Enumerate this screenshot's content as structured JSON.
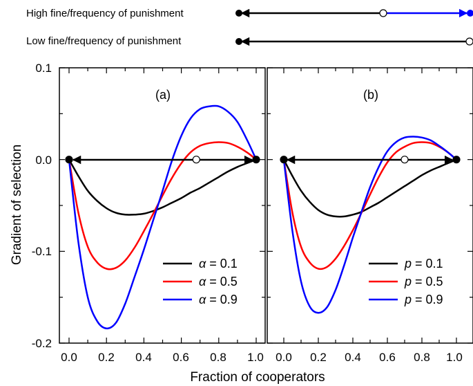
{
  "top_diagrams": [
    {
      "label": "High fine/frequency of punishment",
      "stable_left": 0.0,
      "unstable_interior": 0.68,
      "stable_right": 1.0
    },
    {
      "label": "Low fine/frequency of punishment",
      "stable_left": 0.0,
      "unstable_right": 1.0
    }
  ],
  "colors": {
    "black": "#000000",
    "red": "#ff0000",
    "blue": "#0000ff"
  },
  "chart_data": [
    {
      "type": "line",
      "panel_label": "(a)",
      "xlabel": "Fraction of cooperators",
      "ylabel": "Gradient of selection",
      "xlim": [
        0.0,
        1.0
      ],
      "ylim": [
        -0.2,
        0.1
      ],
      "x_ticks": [
        "0.0",
        "0.2",
        "0.4",
        "0.6",
        "0.8",
        "1.0"
      ],
      "y_ticks": [
        "0.1",
        "0.0",
        "-0.1",
        "-0.2"
      ],
      "legend_position": "bottom-right",
      "legend": [
        {
          "symbol": "α",
          "text": " = 0.1",
          "color": "#000000"
        },
        {
          "symbol": "α",
          "text": " = 0.5",
          "color": "#ff0000"
        },
        {
          "symbol": "α",
          "text": " = 0.9",
          "color": "#0000ff"
        }
      ],
      "x": [
        0.0,
        0.05,
        0.1,
        0.15,
        0.2,
        0.25,
        0.3,
        0.35,
        0.4,
        0.45,
        0.5,
        0.55,
        0.6,
        0.65,
        0.7,
        0.75,
        0.8,
        0.85,
        0.9,
        0.95,
        1.0
      ],
      "series": [
        {
          "color": "#000000",
          "values": [
            0.0,
            -0.018,
            -0.034,
            -0.045,
            -0.053,
            -0.058,
            -0.06,
            -0.06,
            -0.059,
            -0.056,
            -0.052,
            -0.047,
            -0.042,
            -0.036,
            -0.031,
            -0.025,
            -0.019,
            -0.013,
            -0.008,
            -0.004,
            0.0
          ]
        },
        {
          "color": "#ff0000",
          "values": [
            0.0,
            -0.058,
            -0.095,
            -0.112,
            -0.119,
            -0.118,
            -0.11,
            -0.096,
            -0.078,
            -0.059,
            -0.039,
            -0.02,
            -0.004,
            0.008,
            0.015,
            0.018,
            0.019,
            0.018,
            0.014,
            0.008,
            0.0
          ]
        },
        {
          "color": "#0000ff",
          "values": [
            0.0,
            -0.09,
            -0.15,
            -0.176,
            -0.184,
            -0.178,
            -0.157,
            -0.128,
            -0.098,
            -0.066,
            -0.034,
            -0.001,
            0.026,
            0.045,
            0.055,
            0.058,
            0.058,
            0.052,
            0.041,
            0.022,
            0.0
          ]
        }
      ],
      "fixed_points": [
        {
          "x": 0.0,
          "y": 0.0,
          "stable": true
        },
        {
          "x": 0.68,
          "y": 0.0,
          "stable": false
        },
        {
          "x": 1.0,
          "y": 0.0,
          "stable": true
        }
      ]
    },
    {
      "type": "line",
      "panel_label": "(b)",
      "xlabel": "Fraction of cooperators",
      "xlim": [
        0.0,
        1.0
      ],
      "ylim": [
        -0.2,
        0.1
      ],
      "x_ticks": [
        "0.0",
        "0.2",
        "0.4",
        "0.6",
        "0.8",
        "1.0"
      ],
      "legend_position": "bottom-right",
      "legend": [
        {
          "symbol": "p",
          "text": " = 0.1",
          "color": "#000000"
        },
        {
          "symbol": "p",
          "text": " = 0.5",
          "color": "#ff0000"
        },
        {
          "symbol": "p",
          "text": " = 0.9",
          "color": "#0000ff"
        }
      ],
      "x": [
        0.0,
        0.05,
        0.1,
        0.15,
        0.2,
        0.25,
        0.3,
        0.35,
        0.4,
        0.45,
        0.5,
        0.55,
        0.6,
        0.65,
        0.7,
        0.75,
        0.8,
        0.85,
        0.9,
        0.95,
        1.0
      ],
      "series": [
        {
          "color": "#000000",
          "values": [
            0.0,
            -0.018,
            -0.034,
            -0.046,
            -0.055,
            -0.06,
            -0.062,
            -0.062,
            -0.06,
            -0.057,
            -0.052,
            -0.047,
            -0.041,
            -0.035,
            -0.029,
            -0.023,
            -0.017,
            -0.012,
            -0.008,
            -0.004,
            0.0
          ]
        },
        {
          "color": "#ff0000",
          "values": [
            0.0,
            -0.058,
            -0.095,
            -0.112,
            -0.119,
            -0.117,
            -0.108,
            -0.094,
            -0.077,
            -0.058,
            -0.038,
            -0.019,
            -0.003,
            0.008,
            0.014,
            0.018,
            0.019,
            0.018,
            0.014,
            0.008,
            0.0
          ]
        },
        {
          "color": "#0000ff",
          "values": [
            0.0,
            -0.078,
            -0.133,
            -0.16,
            -0.167,
            -0.161,
            -0.142,
            -0.115,
            -0.085,
            -0.057,
            -0.03,
            -0.008,
            0.009,
            0.019,
            0.024,
            0.025,
            0.024,
            0.021,
            0.015,
            0.008,
            0.0
          ]
        }
      ],
      "fixed_points": [
        {
          "x": 0.0,
          "y": 0.0,
          "stable": true
        },
        {
          "x": 0.7,
          "y": 0.0,
          "stable": false
        },
        {
          "x": 1.0,
          "y": 0.0,
          "stable": true
        }
      ]
    }
  ]
}
